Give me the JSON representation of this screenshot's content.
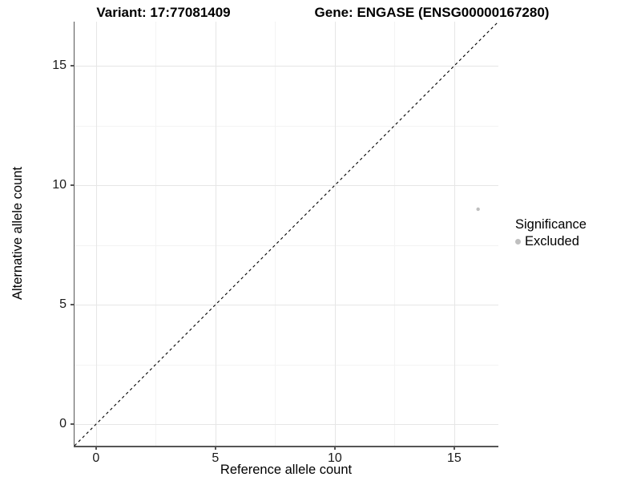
{
  "titles": {
    "variant": "Variant: 17:77081409",
    "gene": "Gene: ENGASE (ENSG00000167280)"
  },
  "legend": {
    "title": "Significance",
    "items": [
      {
        "label": "Excluded",
        "color": "#bfbfbf",
        "marker": "circle"
      }
    ]
  },
  "chart_data": {
    "type": "scatter",
    "xlabel": "Reference allele count",
    "ylabel": "Alternative allele count",
    "xlim": [
      -0.9,
      16.85
    ],
    "ylim": [
      -0.9,
      16.85
    ],
    "xticks": [
      0,
      5,
      10,
      15
    ],
    "yticks": [
      0,
      5,
      10,
      15
    ],
    "xticks_minor": [
      2.5,
      7.5,
      12.5
    ],
    "yticks_minor": [
      2.5,
      7.5,
      12.5
    ],
    "grid": "major+minor",
    "legend_position": "right",
    "series": [
      {
        "name": "Excluded",
        "color": "#bfbfbf",
        "points": [
          [
            16,
            9
          ]
        ]
      }
    ],
    "reference_line": {
      "type": "identity",
      "style": "dashed",
      "color": "#000000"
    }
  },
  "colors": {
    "axis_line": "#555555",
    "grid_major": "#e6e6e6",
    "grid_minor": "#f3f3f3",
    "tick_text": "#1a1a1a",
    "title_text": "#000000"
  }
}
